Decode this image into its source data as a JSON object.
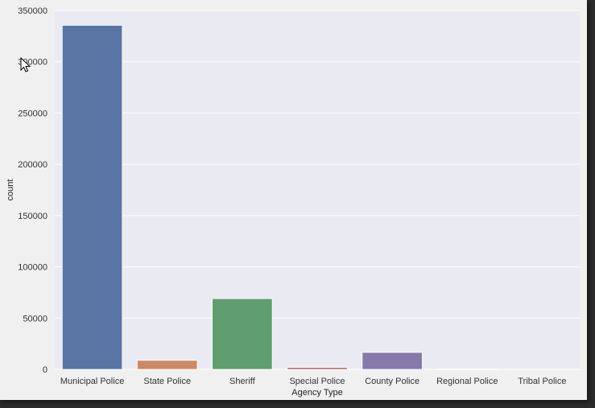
{
  "chart_data": {
    "type": "bar",
    "title": "",
    "xlabel": "Agency Type",
    "ylabel": "count",
    "categories": [
      "Municipal Police",
      "State Police",
      "Sheriff",
      "Special Police",
      "County Police",
      "Regional Police",
      "Tribal Police"
    ],
    "values": [
      335500,
      8800,
      69000,
      1800,
      16500,
      350,
      150
    ],
    "colors": [
      "#5875a4",
      "#cc8963",
      "#5f9e6e",
      "#b55d60",
      "#857aab",
      "#8d7866",
      "#d095bf"
    ],
    "ylim": [
      0,
      350000
    ],
    "yticks": [
      0,
      50000,
      100000,
      150000,
      200000,
      250000,
      300000,
      350000
    ],
    "grid": true,
    "plot_background": "#eaeaf2"
  },
  "icons": {
    "cursor": "mouse-pointer-icon"
  }
}
